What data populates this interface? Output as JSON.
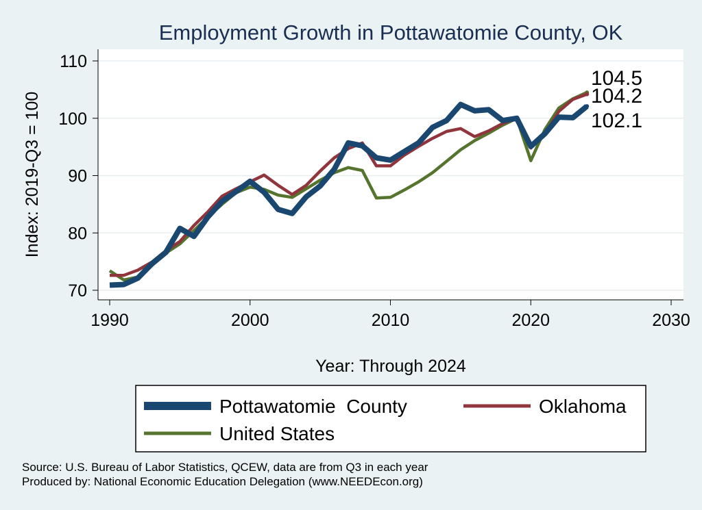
{
  "chart_data": {
    "type": "line",
    "title": "Employment Growth in Pottawatomie County, OK",
    "xlabel": "Year: Through 2024",
    "ylabel": "Index: 2019-Q3 = 100",
    "xlim": [
      1990,
      2030
    ],
    "ylim": [
      70,
      110
    ],
    "xticks": [
      1990,
      2000,
      2010,
      2020,
      2030
    ],
    "yticks": [
      70,
      80,
      90,
      100,
      110
    ],
    "grid": true,
    "legend_position": "bottom",
    "x": [
      1990,
      1991,
      1992,
      1993,
      1994,
      1995,
      1996,
      1997,
      1998,
      1999,
      2000,
      2001,
      2002,
      2003,
      2004,
      2005,
      2006,
      2007,
      2008,
      2009,
      2010,
      2011,
      2012,
      2013,
      2014,
      2015,
      2016,
      2017,
      2018,
      2019,
      2020,
      2021,
      2022,
      2023,
      2024
    ],
    "series": [
      {
        "name": "Pottawatomie  County",
        "color": "#1a476f",
        "line_weight": "thick",
        "values": [
          70.9,
          71.0,
          72.1,
          74.6,
          76.6,
          80.8,
          79.4,
          82.8,
          85.5,
          87.2,
          89.0,
          87.1,
          84.1,
          83.4,
          86.3,
          88.2,
          91.1,
          95.7,
          95.2,
          93.1,
          92.7,
          94.2,
          95.7,
          98.4,
          99.6,
          102.4,
          101.3,
          101.5,
          99.6,
          100.0,
          95.1,
          97.3,
          100.2,
          100.1,
          102.1
        ]
      },
      {
        "name": "Oklahoma",
        "color": "#90353b",
        "line_weight": "medium",
        "values": [
          72.6,
          72.6,
          73.5,
          74.9,
          76.9,
          78.5,
          81.3,
          83.7,
          86.4,
          87.7,
          88.9,
          90.1,
          88.3,
          86.7,
          88.3,
          90.8,
          93.1,
          94.7,
          95.7,
          91.7,
          91.7,
          93.6,
          95.1,
          96.5,
          97.7,
          98.2,
          96.8,
          97.8,
          99.1,
          100.0,
          94.8,
          97.2,
          101.2,
          103.3,
          104.2
        ]
      },
      {
        "name": "United States",
        "color": "#55752f",
        "line_weight": "medium",
        "values": [
          73.4,
          71.8,
          72.3,
          74.3,
          76.5,
          78.1,
          80.4,
          82.8,
          85.0,
          87.0,
          88.0,
          87.6,
          86.6,
          86.2,
          87.7,
          89.2,
          90.5,
          91.4,
          90.9,
          86.1,
          86.2,
          87.5,
          88.9,
          90.5,
          92.5,
          94.5,
          96.1,
          97.4,
          98.8,
          100.0,
          92.6,
          98.0,
          101.8,
          103.4,
          104.5
        ]
      }
    ],
    "end_labels": [
      "104.5",
      "104.2",
      "102.1"
    ],
    "source_lines": [
      "Source: U.S. Bureau of Labor Statistics, QCEW, data are from Q3 in each year",
      "Produced by: National Economic Education Delegation (www.NEEDEcon.org)"
    ]
  }
}
